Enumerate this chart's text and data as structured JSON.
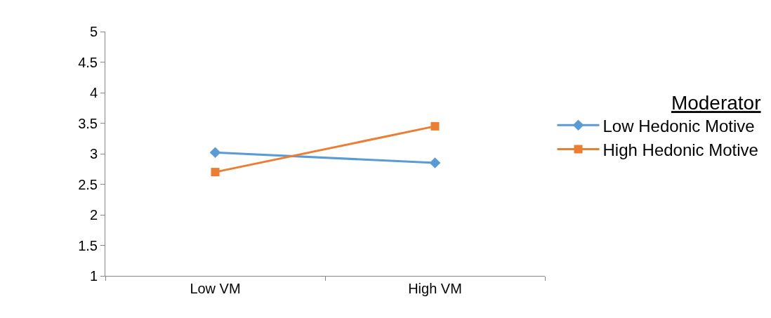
{
  "chart_data": {
    "type": "line",
    "categories": [
      "Low VM",
      "High VM"
    ],
    "series": [
      {
        "name": "Low Hedonic Motive",
        "color": "#5b9bd5",
        "values": [
          3.02,
          2.85
        ],
        "marker": "diamond"
      },
      {
        "name": "High Hedonic Motive",
        "color": "#ed7d31",
        "values": [
          2.7,
          3.45
        ],
        "marker": "square"
      }
    ],
    "ylim": [
      1,
      5
    ],
    "yticks": [
      1,
      1.5,
      2,
      2.5,
      3,
      3.5,
      4,
      4.5,
      5
    ],
    "legend_title": "Moderator",
    "legend": "right",
    "grid": false,
    "line_style": "solid"
  }
}
